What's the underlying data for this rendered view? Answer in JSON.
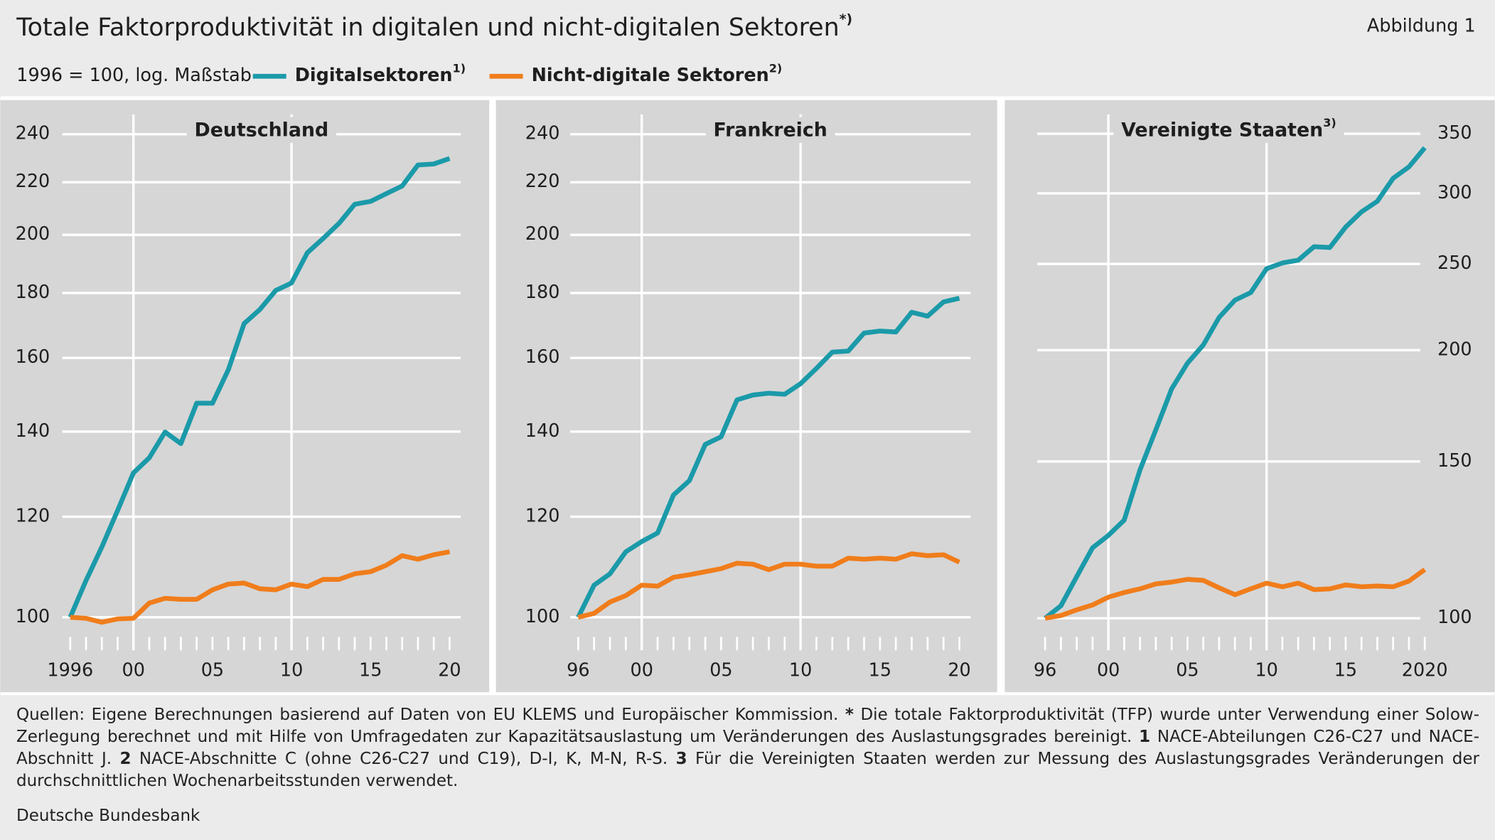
{
  "title": "Totale Faktorproduktivität in digitalen und nicht-digitalen Sektoren",
  "title_note": "*)",
  "figure_label": "Abbildung 1",
  "subtitle": "1996 = 100, log. Maßstab",
  "footnote": [
    {
      "text": "Quellen: Eigene Berechnungen basierend auf Daten von EU KLEMS und Europäischer Kommission. ",
      "bold": false
    },
    {
      "text": "*",
      "bold": true
    },
    {
      "text": " Die totale Faktorproduktivität (TFP) wurde unter Verwendung einer Solow-Zerlegung berechnet und mit Hilfe von Umfragedaten zur Kapazitätsauslastung um Veränderungen des Auslastungsgrades bereinigt. ",
      "bold": false
    },
    {
      "text": "1",
      "bold": true
    },
    {
      "text": " NACE-Abteilungen C26-C27 und NACE-Abschnitt J. ",
      "bold": false
    },
    {
      "text": "2",
      "bold": true
    },
    {
      "text": " NACE-Abschnitte C (ohne C26-C27 und C19), D-I, K, M-N, R-S. ",
      "bold": false
    },
    {
      "text": "3",
      "bold": true
    },
    {
      "text": " Für die Vereinigten Staaten werden zur Messung des Auslastungsgrades Veränderungen der durchschnittlichen Wochenarbeitsstunden verwendet.",
      "bold": false
    }
  ],
  "source": "Deutsche Bundesbank",
  "chart_data": [
    {
      "type": "line",
      "title": "Deutschland",
      "log_y": true,
      "y_axis_side": "left",
      "x": [
        1996,
        1997,
        1998,
        1999,
        2000,
        2001,
        2002,
        2003,
        2004,
        2005,
        2006,
        2007,
        2008,
        2009,
        2010,
        2011,
        2012,
        2013,
        2014,
        2015,
        2016,
        2017,
        2018,
        2019,
        2020
      ],
      "xlim": [
        1995.5,
        2020.7
      ],
      "xticks": [
        {
          "value": 1996,
          "label": "1996"
        },
        {
          "value": 2000,
          "label": "00"
        },
        {
          "value": 2005,
          "label": "05"
        },
        {
          "value": 2010,
          "label": "10"
        },
        {
          "value": 2015,
          "label": "15"
        },
        {
          "value": 2020,
          "label": "20"
        }
      ],
      "xminorticks": [
        1996,
        1997,
        1998,
        1999,
        2000,
        2001,
        2002,
        2003,
        2004,
        2005,
        2006,
        2007,
        2008,
        2009,
        2010,
        2011,
        2012,
        2013,
        2014,
        2015,
        2016,
        2017,
        2018,
        2019,
        2020
      ],
      "xgrid": [
        2000,
        2010
      ],
      "ylim": [
        97,
        254
      ],
      "yticks": [
        100,
        120,
        140,
        160,
        180,
        200,
        220,
        240
      ],
      "grid": true,
      "series": [
        {
          "name": "Digitalsektoren",
          "name_note": "1)",
          "color": "#1b9aa9",
          "values": [
            100,
            106.9,
            113.6,
            121.4,
            129.9,
            133.5,
            139.9,
            137.0,
            147.4,
            147.4,
            156.6,
            170.3,
            174.7,
            180.8,
            183.3,
            193.6,
            198.7,
            204.2,
            211.4,
            212.5,
            215.5,
            218.5,
            227.0,
            227.4,
            229.7
          ]
        },
        {
          "name": "Nicht-digitale Sektoren",
          "name_note": "2)",
          "color": "#f07d1b",
          "values": [
            100,
            99.8,
            99.1,
            99.7,
            99.8,
            102.6,
            103.5,
            103.3,
            103.3,
            105.1,
            106.2,
            106.4,
            105.3,
            105.1,
            106.2,
            105.7,
            107.1,
            107.1,
            108.2,
            108.6,
            109.9,
            111.8,
            111.1,
            112.0,
            112.6
          ]
        }
      ]
    },
    {
      "type": "line",
      "title": "Frankreich",
      "log_y": true,
      "y_axis_side": "left",
      "x": [
        1996,
        1997,
        1998,
        1999,
        2000,
        2001,
        2002,
        2003,
        2004,
        2005,
        2006,
        2007,
        2008,
        2009,
        2010,
        2011,
        2012,
        2013,
        2014,
        2015,
        2016,
        2017,
        2018,
        2019,
        2020
      ],
      "xlim": [
        1995.5,
        2020.7
      ],
      "xticks": [
        {
          "value": 1996,
          "label": "96"
        },
        {
          "value": 2000,
          "label": "00"
        },
        {
          "value": 2005,
          "label": "05"
        },
        {
          "value": 2010,
          "label": "10"
        },
        {
          "value": 2015,
          "label": "15"
        },
        {
          "value": 2020,
          "label": "20"
        }
      ],
      "xminorticks": [
        1996,
        1997,
        1998,
        1999,
        2000,
        2001,
        2002,
        2003,
        2004,
        2005,
        2006,
        2007,
        2008,
        2009,
        2010,
        2011,
        2012,
        2013,
        2014,
        2015,
        2016,
        2017,
        2018,
        2019,
        2020
      ],
      "xgrid": [
        2000,
        2010
      ],
      "ylim": [
        97,
        254
      ],
      "yticks": [
        100,
        120,
        140,
        160,
        180,
        200,
        220,
        240
      ],
      "grid": true,
      "series": [
        {
          "color": "#1b9aa9",
          "values": [
            100,
            106.0,
            108.2,
            112.6,
            114.7,
            116.5,
            124.8,
            128.1,
            136.8,
            138.7,
            148.3,
            149.6,
            150.1,
            149.8,
            152.7,
            157.0,
            161.7,
            162.0,
            167.4,
            168.0,
            167.7,
            173.8,
            172.6,
            177.1,
            178.3
          ]
        },
        {
          "color": "#f07d1b",
          "values": [
            100,
            100.7,
            102.8,
            104.0,
            106.0,
            105.8,
            107.5,
            108.0,
            108.6,
            109.2,
            110.3,
            110.1,
            109.0,
            110.1,
            110.1,
            109.7,
            109.7,
            111.3,
            111.1,
            111.3,
            111.1,
            112.2,
            111.8,
            112.0,
            110.5
          ]
        }
      ]
    },
    {
      "type": "line",
      "title": "Vereinigte Staaten",
      "title_note": "3)",
      "log_y": true,
      "y_axis_side": "right",
      "x": [
        1996,
        1997,
        1998,
        1999,
        2000,
        2001,
        2002,
        2003,
        2004,
        2005,
        2006,
        2007,
        2008,
        2009,
        2010,
        2011,
        2012,
        2013,
        2014,
        2015,
        2016,
        2017,
        2018,
        2019,
        2020
      ],
      "xlim": [
        1995.5,
        2020.2
      ],
      "xticks": [
        {
          "value": 1996,
          "label": "96"
        },
        {
          "value": 2000,
          "label": "00"
        },
        {
          "value": 2005,
          "label": "05"
        },
        {
          "value": 2010,
          "label": "10"
        },
        {
          "value": 2015,
          "label": "15"
        },
        {
          "value": 2020,
          "label": "2020"
        }
      ],
      "xminorticks": [
        1996,
        1997,
        1998,
        1999,
        2000,
        2001,
        2002,
        2003,
        2004,
        2005,
        2006,
        2007,
        2008,
        2009,
        2010,
        2011,
        2012,
        2013,
        2014,
        2015,
        2016,
        2017,
        2018,
        2019,
        2020
      ],
      "xgrid": [
        2000,
        2010
      ],
      "ylim": [
        96,
        379
      ],
      "yticks": [
        100,
        150,
        200,
        250,
        300,
        350
      ],
      "grid": true,
      "series": [
        {
          "color": "#1b9aa9",
          "values": [
            100,
            103.3,
            111.4,
            120.0,
            123.9,
            128.9,
            146.8,
            162.8,
            181.0,
            193.4,
            202.7,
            217.7,
            227.6,
            232.1,
            246.9,
            250.6,
            252.4,
            261.4,
            260.8,
            275.0,
            286.0,
            293.9,
            311.9,
            321.3,
            337.5
          ]
        },
        {
          "color": "#f07d1b",
          "values": [
            100,
            100.7,
            102.2,
            103.5,
            105.6,
            106.9,
            107.9,
            109.3,
            109.8,
            110.6,
            110.3,
            108.2,
            106.3,
            107.9,
            109.5,
            108.5,
            109.5,
            107.7,
            107.9,
            109.0,
            108.5,
            108.7,
            108.5,
            110.1,
            113.4
          ]
        }
      ]
    }
  ]
}
